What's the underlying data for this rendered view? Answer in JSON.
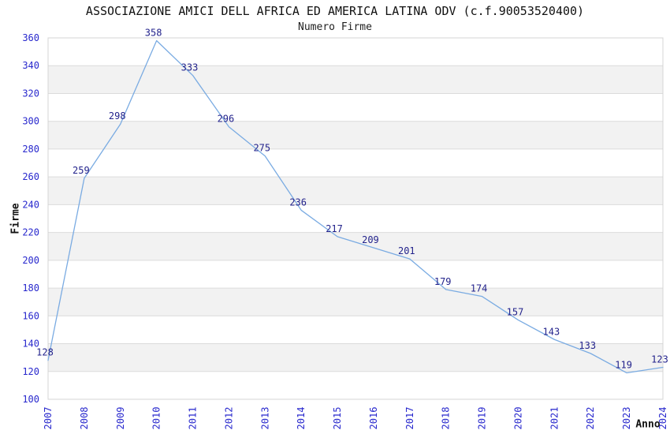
{
  "chart_data": {
    "type": "line",
    "title": "ASSOCIAZIONE AMICI DELL AFRICA ED AMERICA LATINA ODV (c.f.90053520400)",
    "subtitle": "Numero Firme",
    "xlabel": "Anno",
    "ylabel": "Firme",
    "categories": [
      "2007",
      "2008",
      "2009",
      "2010",
      "2011",
      "2012",
      "2013",
      "2014",
      "2015",
      "2016",
      "2017",
      "2018",
      "2019",
      "2020",
      "2021",
      "2022",
      "2023",
      "2024"
    ],
    "values": [
      128,
      259,
      298,
      358,
      333,
      296,
      275,
      236,
      217,
      209,
      201,
      179,
      174,
      157,
      143,
      133,
      119,
      123
    ],
    "ylim": [
      100,
      360
    ],
    "ytick_step": 20,
    "grid": true,
    "alternating_bands": true,
    "legend_position": "none",
    "markers": "none",
    "colors": {
      "line": "#7aabe2",
      "tick_label": "#2828cd",
      "data_label": "#23238c",
      "band": "#f2f2f2",
      "gridline": "#dbdbdb",
      "border": "#d4d4d4",
      "title": "#111111"
    }
  }
}
